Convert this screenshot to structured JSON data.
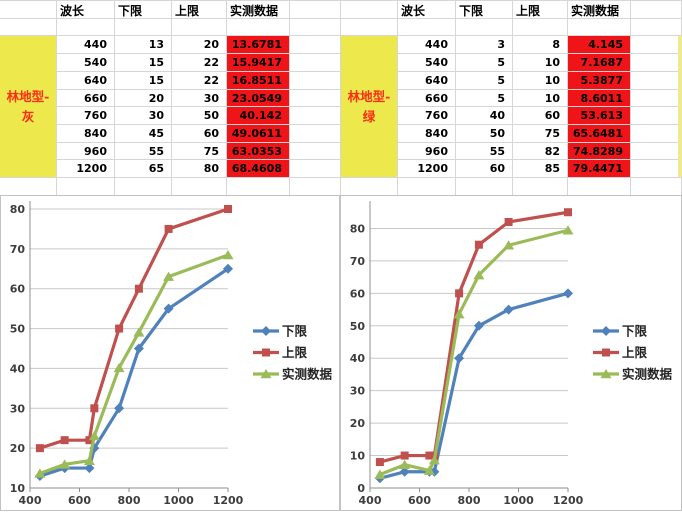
{
  "colors": {
    "yellow_fill": "#EDE84C",
    "red_fill": "#EE1418",
    "label_text": "#FA2E16",
    "gridline": "#c8c8c8",
    "axis": "#8f8f8f",
    "tick_label": "#3d3d3d",
    "series_lower": "#4F81BD",
    "series_upper": "#C0504D",
    "series_measured": "#9BBB59"
  },
  "tables": [
    {
      "id": "gray",
      "row_label": "林地型-\n灰",
      "headers": [
        "波长",
        "下限",
        "上限",
        "实测数据"
      ],
      "rows": [
        [
          "440",
          "13",
          "20",
          "13.6781"
        ],
        [
          "540",
          "15",
          "22",
          "15.9417"
        ],
        [
          "640",
          "15",
          "22",
          "16.8511"
        ],
        [
          "660",
          "20",
          "30",
          "23.0549"
        ],
        [
          "760",
          "30",
          "50",
          "40.142"
        ],
        [
          "840",
          "45",
          "60",
          "49.0611"
        ],
        [
          "960",
          "55",
          "75",
          "63.0353"
        ],
        [
          "1200",
          "65",
          "80",
          "68.4608"
        ]
      ]
    },
    {
      "id": "green",
      "row_label": "林地型-\n绿",
      "headers": [
        "波长",
        "下限",
        "上限",
        "实测数据"
      ],
      "rows": [
        [
          "440",
          "3",
          "8",
          "4.145"
        ],
        [
          "540",
          "5",
          "10",
          "7.1687"
        ],
        [
          "640",
          "5",
          "10",
          "5.3877"
        ],
        [
          "660",
          "5",
          "10",
          "8.6011"
        ],
        [
          "760",
          "40",
          "60",
          "53.613"
        ],
        [
          "840",
          "50",
          "75",
          "65.6481"
        ],
        [
          "960",
          "55",
          "82",
          "74.8289"
        ],
        [
          "1200",
          "60",
          "85",
          "79.4471"
        ]
      ]
    }
  ],
  "chart_data": [
    {
      "type": "line",
      "title": "",
      "xlabel": "",
      "ylabel": "",
      "x": [
        440,
        540,
        640,
        660,
        760,
        840,
        960,
        1200
      ],
      "series": [
        {
          "name": "下限",
          "marker": "diamond",
          "color": "#4F81BD",
          "values": [
            13,
            15,
            15,
            20,
            30,
            45,
            55,
            65
          ]
        },
        {
          "name": "上限",
          "marker": "square",
          "color": "#C0504D",
          "values": [
            20,
            22,
            22,
            30,
            50,
            60,
            75,
            80
          ]
        },
        {
          "name": "实测数据",
          "marker": "triangle",
          "color": "#9BBB59",
          "values": [
            13.6781,
            15.9417,
            16.8511,
            23.0549,
            40.142,
            49.0611,
            63.0353,
            68.4608
          ]
        }
      ],
      "xlim": [
        400,
        1200
      ],
      "ylim": [
        10,
        80
      ],
      "xticks": [
        400,
        600,
        800,
        1000,
        1200
      ],
      "yticks": [
        10,
        20,
        30,
        40,
        50,
        60,
        70,
        80
      ],
      "grid": true,
      "legend_position": "right"
    },
    {
      "type": "line",
      "title": "",
      "xlabel": "",
      "ylabel": "",
      "x": [
        440,
        540,
        640,
        660,
        760,
        840,
        960,
        1200
      ],
      "series": [
        {
          "name": "下限",
          "marker": "diamond",
          "color": "#4F81BD",
          "values": [
            3,
            5,
            5,
            5,
            40,
            50,
            55,
            60
          ]
        },
        {
          "name": "上限",
          "marker": "square",
          "color": "#C0504D",
          "values": [
            8,
            10,
            10,
            10,
            60,
            75,
            82,
            85
          ]
        },
        {
          "name": "实测数据",
          "marker": "triangle",
          "color": "#9BBB59",
          "values": [
            4.145,
            7.1687,
            5.3877,
            8.6011,
            53.613,
            65.6481,
            74.8289,
            79.4471
          ]
        }
      ],
      "xlim": [
        400,
        1200
      ],
      "ylim": [
        0,
        86
      ],
      "xticks": [
        400,
        600,
        800,
        1000,
        1200
      ],
      "yticks": [
        0,
        10,
        20,
        30,
        40,
        50,
        60,
        70,
        80
      ],
      "grid": true,
      "legend_position": "right"
    }
  ]
}
